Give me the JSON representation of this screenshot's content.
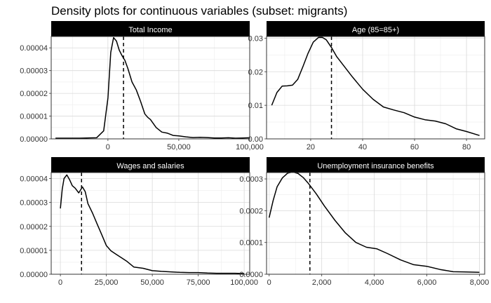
{
  "title": "Density plots for continuous variables (subset: migrants)",
  "style": {
    "strip_bg": "#000000",
    "strip_text": "#ffffff",
    "grid": "#d9d9d9",
    "line": "#000000",
    "panel_border": "#333333"
  },
  "chart_data": [
    {
      "type": "line",
      "title": "Total Income",
      "xlim": [
        -40000,
        100000
      ],
      "ylim": [
        0,
        4.5e-05
      ],
      "xticks": [
        0,
        50000,
        100000
      ],
      "xtick_labels": [
        "0",
        "50,000",
        "100,000"
      ],
      "yticks": [
        0,
        1e-05,
        2e-05,
        3e-05,
        4e-05
      ],
      "ytick_labels": [
        "0.00000",
        "0.00001",
        "0.00002",
        "0.00003",
        "0.00004"
      ],
      "vline": 11000,
      "grid": true,
      "x": [
        -37000,
        -20000,
        -8000,
        -3000,
        0,
        2000,
        4000,
        6000,
        8000,
        10000,
        12000,
        14000,
        17000,
        20000,
        23000,
        26000,
        28000,
        30000,
        34000,
        38000,
        42000,
        46000,
        50000,
        55000,
        60000,
        65000,
        70000,
        75000,
        80000,
        85000,
        90000,
        95000,
        100000
      ],
      "y": [
        3e-07,
        3e-07,
        5e-07,
        3.5e-06,
        1.8e-05,
        3.8e-05,
        4.45e-05,
        4.3e-05,
        3.9e-05,
        3.65e-05,
        3.45e-05,
        3.1e-05,
        2.5e-05,
        2.15e-05,
        1.65e-05,
        1.1e-05,
        9.5e-06,
        8.5e-06,
        5e-06,
        3e-06,
        2.5e-06,
        1.5e-06,
        1.3e-06,
        9e-07,
        6e-07,
        7e-07,
        6e-07,
        4e-07,
        4e-07,
        5e-07,
        3e-07,
        4e-07,
        5e-07
      ]
    },
    {
      "type": "line",
      "title": "Age (85=85+)",
      "xlim": [
        3,
        87
      ],
      "ylim": [
        0,
        0.0305
      ],
      "xticks": [
        20,
        40,
        60,
        80
      ],
      "xtick_labels": [
        "20",
        "40",
        "60",
        "80"
      ],
      "yticks": [
        0,
        0.01,
        0.02,
        0.03
      ],
      "ytick_labels": [
        "0.00",
        "0.01",
        "0.02",
        "0.03"
      ],
      "vline": 28,
      "grid": true,
      "x": [
        5,
        7,
        9,
        11,
        13,
        15,
        17,
        19,
        21,
        23,
        24.5,
        26,
        28,
        30,
        33,
        36,
        40,
        44,
        48,
        52,
        56,
        60,
        64,
        68,
        72,
        76,
        80,
        85
      ],
      "y": [
        0.01,
        0.0138,
        0.0157,
        0.0158,
        0.016,
        0.0177,
        0.0215,
        0.0255,
        0.0288,
        0.0302,
        0.0302,
        0.0295,
        0.0272,
        0.0245,
        0.0215,
        0.0185,
        0.0148,
        0.0118,
        0.0095,
        0.0086,
        0.0078,
        0.0065,
        0.0057,
        0.0053,
        0.0045,
        0.003,
        0.0022,
        0.001
      ]
    },
    {
      "type": "line",
      "title": "Wages and salaries",
      "xlim": [
        -5000,
        103000
      ],
      "ylim": [
        0,
        4.25e-05
      ],
      "xticks": [
        0,
        25000,
        50000,
        75000,
        100000
      ],
      "xtick_labels": [
        "0",
        "25,000",
        "50,000",
        "75,000",
        "100,000"
      ],
      "yticks": [
        0,
        1e-05,
        2e-05,
        3e-05,
        4e-05
      ],
      "ytick_labels": [
        "0.00000",
        "0.00001",
        "0.00002",
        "0.00003",
        "0.00004"
      ],
      "vline": 11500,
      "grid": true,
      "x": [
        0,
        1000,
        2000,
        3500,
        5000,
        6500,
        8000,
        10000,
        12000,
        13500,
        15000,
        17500,
        20000,
        22500,
        25000,
        27500,
        30000,
        33000,
        36000,
        40000,
        45000,
        50000,
        55000,
        60000,
        65000,
        70000,
        75000,
        80000,
        85000,
        90000,
        95000,
        100000
      ],
      "y": [
        2.75e-05,
        3.55e-05,
        4e-05,
        4.15e-05,
        3.95e-05,
        3.7e-05,
        3.6e-05,
        3.4e-05,
        3.65e-05,
        3.45e-05,
        2.95e-05,
        2.55e-05,
        2.1e-05,
        1.65e-05,
        1.2e-05,
        9.8e-06,
        8.5e-06,
        7e-06,
        5.5e-06,
        3e-06,
        2.5e-06,
        1.5e-06,
        1.2e-06,
        1e-06,
        8e-07,
        7e-07,
        7e-07,
        5e-07,
        4e-07,
        4e-07,
        4e-07,
        3e-07
      ]
    },
    {
      "type": "line",
      "title": "Unemployment insurance benefits",
      "xlim": [
        -100,
        8200
      ],
      "ylim": [
        0,
        0.00032
      ],
      "xticks": [
        0,
        2000,
        4000,
        6000,
        8000
      ],
      "xtick_labels": [
        "0",
        "2,000",
        "4,000",
        "6,000",
        "8,000"
      ],
      "yticks": [
        0,
        0.0001,
        0.0002,
        0.0003
      ],
      "ytick_labels": [
        "0.0000",
        "0.0001",
        "0.0002",
        "0.0003"
      ],
      "vline": 1550,
      "grid": true,
      "x": [
        0,
        150,
        300,
        500,
        700,
        900,
        1100,
        1300,
        1500,
        1800,
        2100,
        2500,
        2900,
        3300,
        3700,
        4100,
        4500,
        5000,
        5500,
        6000,
        6500,
        7000,
        7500,
        8000
      ],
      "y": [
        0.000178,
        0.000232,
        0.000275,
        0.000303,
        0.000318,
        0.000322,
        0.000317,
        0.000304,
        0.000285,
        0.000252,
        0.000215,
        0.00017,
        0.00013,
        0.0001,
        8.5e-05,
        8e-05,
        6.5e-05,
        4.5e-05,
        3e-05,
        2.5e-05,
        1.5e-05,
        8e-06,
        7e-06,
        6e-06
      ]
    }
  ]
}
